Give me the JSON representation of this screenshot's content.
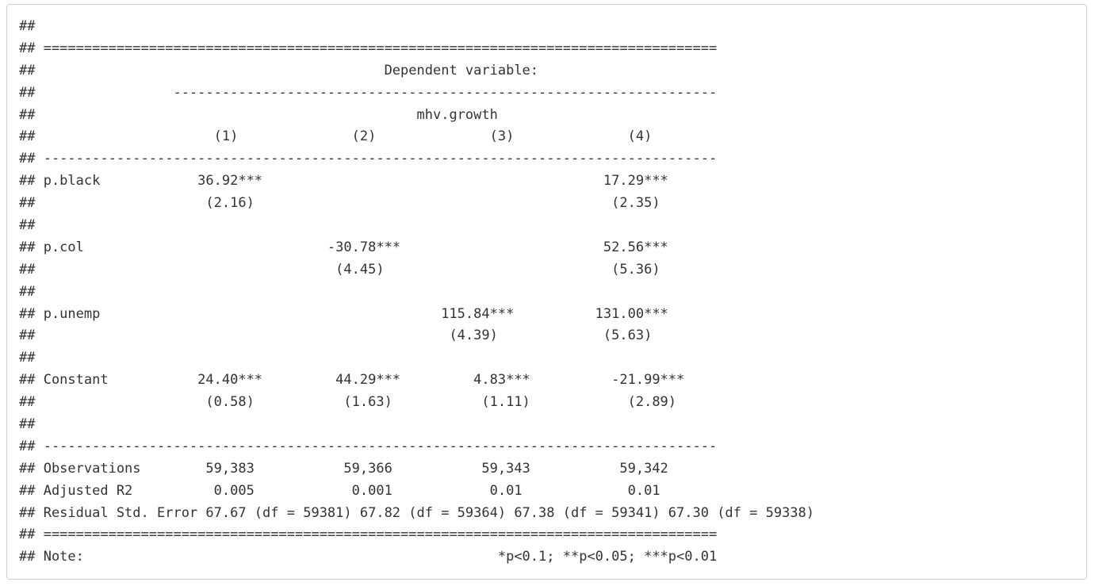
{
  "output": {
    "lines": [
      "##",
      "## ===================================================================================",
      "##                                           Dependent variable:",
      "##                 -------------------------------------------------------------------",
      "##                                               mhv.growth",
      "##                      (1)              (2)              (3)              (4)",
      "## -----------------------------------------------------------------------------------",
      "## p.black            36.92***                                          17.29***",
      "##                     (2.16)                                            (2.35)",
      "##",
      "## p.col                              -30.78***                         52.56***",
      "##                                     (4.45)                            (5.36)",
      "##",
      "## p.unemp                                          115.84***          131.00***",
      "##                                                   (4.39)             (5.63)",
      "##",
      "## Constant           24.40***         44.29***         4.83***          -21.99***",
      "##                     (0.58)           (1.63)           (1.11)            (2.89)",
      "##",
      "## -----------------------------------------------------------------------------------",
      "## Observations        59,383           59,366           59,343           59,342",
      "## Adjusted R2          0.005            0.001            0.01             0.01",
      "## Residual Std. Error 67.67 (df = 59381) 67.82 (df = 59364) 67.38 (df = 59341) 67.30 (df = 59338)",
      "## ===================================================================================",
      "## Note:                                                   *p<0.1; **p<0.05; ***p<0.01"
    ]
  }
}
